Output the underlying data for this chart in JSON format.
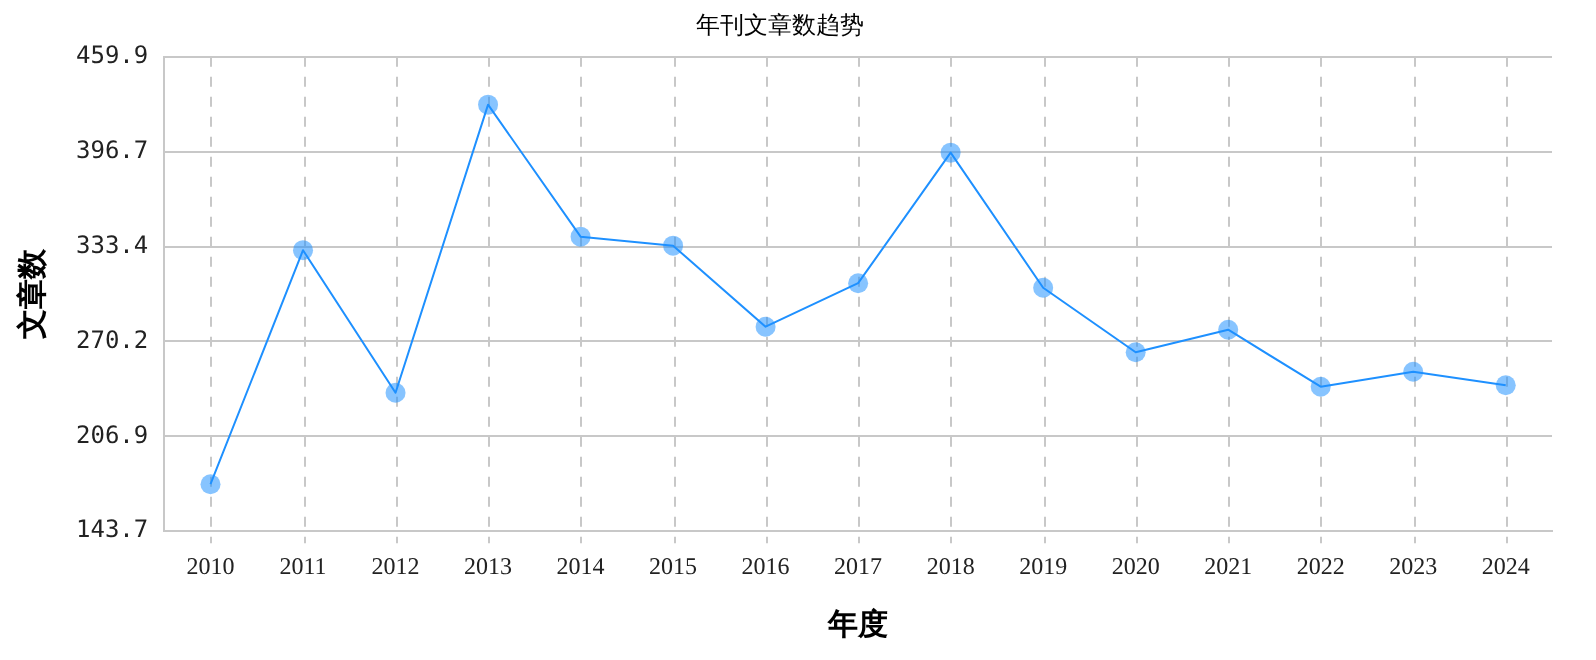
{
  "chart_data": {
    "type": "line",
    "title": "年刊文章数趋势",
    "xlabel": "年度",
    "ylabel": "文章数",
    "categories": [
      "2010",
      "2011",
      "2012",
      "2013",
      "2014",
      "2015",
      "2016",
      "2017",
      "2018",
      "2019",
      "2020",
      "2021",
      "2022",
      "2023",
      "2024"
    ],
    "series": [
      {
        "color": "#1e90ff",
        "values": [
          175,
          331,
          236,
          428,
          340,
          334,
          280,
          309,
          396,
          306,
          263,
          278,
          240,
          250,
          241
        ]
      }
    ],
    "ylim": [
      143.7,
      459.9
    ],
    "yticks": [
      143.7,
      206.9,
      270.2,
      333.4,
      396.7,
      459.9
    ],
    "grid": true,
    "legend": false,
    "marker": "circle",
    "line_style": "solid"
  }
}
